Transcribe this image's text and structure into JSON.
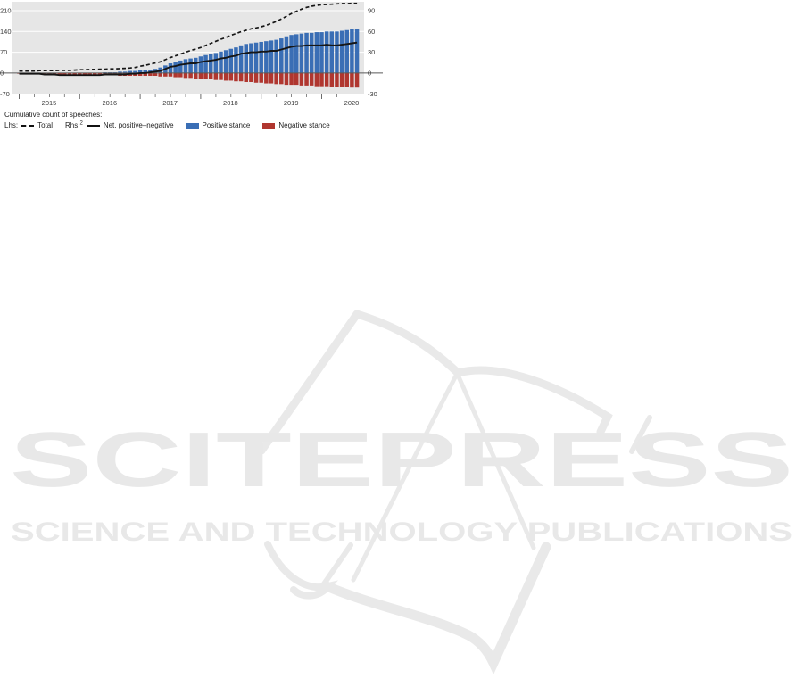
{
  "figure": {
    "legend": {
      "title": "Cumulative count of speeches:",
      "lhs_label": "Lhs:",
      "total_label": "Total",
      "rhs_label": "Rhs:",
      "rhs_sup": "2",
      "net_label": "Net, positive–negative",
      "positive_label": "Positive stance",
      "negative_label": "Negative stance"
    }
  },
  "chart_data": {
    "type": "mixed-bar-line",
    "title": "Cumulative count of speeches:",
    "x_start": "2015-01",
    "x_frequency": "monthly",
    "x_year_labels": [
      "2015",
      "2016",
      "2017",
      "2018",
      "2019",
      "2020"
    ],
    "lhs_axis": {
      "ticks": [
        210,
        140,
        70,
        0,
        -70
      ],
      "range": [
        -70,
        245
      ]
    },
    "rhs_axis": {
      "ticks": [
        90,
        60,
        30,
        0,
        -30
      ],
      "range": [
        -30,
        105
      ]
    },
    "grid": "on",
    "legend_position": "bottom",
    "colors": {
      "positive": "#3a6eb5",
      "negative": "#b0362f",
      "line": "#161616",
      "plot_background": "#e6e6e6",
      "gridline": "#ffffff",
      "zero_line": "#5a5a5a"
    },
    "series": [
      {
        "name": "Total",
        "axis": "lhs",
        "render": "line-dashed",
        "values": [
          7,
          7,
          7,
          7,
          8,
          8,
          8,
          8,
          9,
          9,
          9,
          10,
          11,
          11,
          12,
          12,
          13,
          13,
          14,
          14,
          15,
          16,
          17,
          19,
          23,
          26,
          30,
          34,
          38,
          45,
          52,
          58,
          64,
          70,
          76,
          81,
          86,
          93,
          100,
          107,
          114,
          120,
          127,
          133,
          139,
          144,
          149,
          152,
          156,
          161,
          167,
          174,
          182,
          191,
          200,
          208,
          215,
          221,
          225,
          228,
          230,
          231,
          232,
          233,
          234,
          234,
          235,
          235
        ]
      },
      {
        "name": "Net, positive–negative",
        "axis": "rhs",
        "render": "line-solid",
        "values": [
          -1,
          -1,
          -1,
          -1,
          -1,
          -2,
          -2,
          -2,
          -3,
          -3,
          -3,
          -3,
          -3,
          -3,
          -3,
          -3,
          -3,
          -2,
          -2,
          -2,
          -2,
          -2,
          -1,
          -1,
          0,
          0,
          1,
          2,
          3,
          6,
          9,
          10,
          12,
          13,
          14,
          14,
          16,
          17,
          18,
          19,
          21,
          22,
          24,
          25,
          28,
          29,
          30,
          30,
          31,
          31,
          32,
          32,
          34,
          36,
          38,
          39,
          39,
          40,
          40,
          40,
          40,
          41,
          40,
          40,
          41,
          42,
          43,
          44
        ]
      },
      {
        "name": "Positive stance",
        "axis": "rhs",
        "render": "bar",
        "values": [
          0,
          0,
          0,
          0,
          0,
          0,
          0,
          0,
          0,
          0,
          0,
          0,
          0,
          0,
          0,
          0,
          0,
          1,
          1,
          1,
          2,
          2,
          3,
          3,
          4,
          4,
          5,
          6,
          8,
          11,
          14,
          16,
          18,
          20,
          21,
          22,
          24,
          26,
          27,
          29,
          31,
          33,
          35,
          37,
          40,
          42,
          43,
          44,
          45,
          46,
          47,
          48,
          50,
          53,
          55,
          56,
          57,
          58,
          58,
          59,
          59,
          60,
          60,
          60,
          61,
          62,
          63,
          63
        ]
      },
      {
        "name": "Negative stance",
        "axis": "rhs",
        "render": "bar",
        "values": [
          -1,
          -1,
          -1,
          -1,
          -1,
          -2,
          -2,
          -2,
          -3,
          -3,
          -3,
          -3,
          -3,
          -3,
          -3,
          -3,
          -3,
          -3,
          -3,
          -3,
          -4,
          -4,
          -4,
          -4,
          -4,
          -4,
          -4,
          -4,
          -5,
          -5,
          -5,
          -6,
          -6,
          -7,
          -7,
          -8,
          -8,
          -9,
          -9,
          -10,
          -10,
          -11,
          -11,
          -12,
          -12,
          -13,
          -13,
          -14,
          -14,
          -15,
          -15,
          -16,
          -16,
          -17,
          -17,
          -17,
          -18,
          -18,
          -18,
          -19,
          -19,
          -19,
          -20,
          -20,
          -20,
          -20,
          -21,
          -21
        ]
      }
    ]
  },
  "watermark": {
    "title": "SCITEPRESS",
    "subtitle": "SCIENCE AND TECHNOLOGY PUBLICATIONS"
  }
}
